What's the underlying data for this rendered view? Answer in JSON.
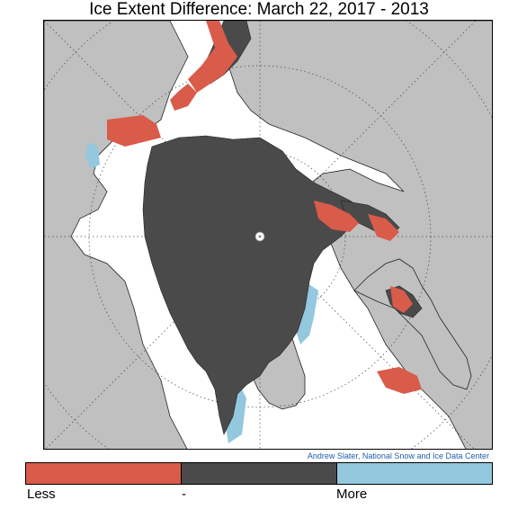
{
  "title": "Ice Extent Difference: March 22, 2017 - 2013",
  "credit": "Andrew Slater, National Snow and Ice Data Center",
  "legend": {
    "items": [
      {
        "label": "Less",
        "color": "#d95b4a"
      },
      {
        "label": "-",
        "color": "#4a4a4a"
      },
      {
        "label": "More",
        "color": "#93c8de"
      }
    ]
  },
  "map": {
    "projection": "north-polar-stereographic",
    "land_color": "#c0c0c0",
    "ice_color": "#4a4a4a",
    "open_water_color": "#ffffff",
    "less_color": "#d95b4a",
    "more_color": "#93c8de",
    "graticule": "dotted"
  }
}
